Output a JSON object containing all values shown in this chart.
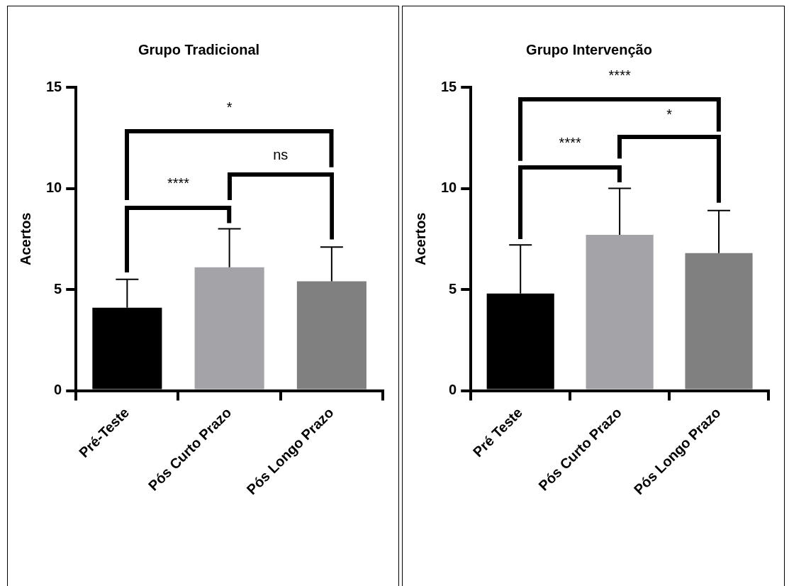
{
  "chart_data": [
    {
      "type": "bar",
      "title": "Grupo Tradicional",
      "ylabel": "Acertos",
      "categories": [
        "Pré-Teste",
        "Pós Curto Prazo",
        "Pós Longo Prazo"
      ],
      "values": [
        4.1,
        6.1,
        5.4
      ],
      "errors": [
        1.4,
        1.9,
        1.7
      ],
      "colors": [
        "#000000",
        "#a3a3a8",
        "#808080"
      ],
      "ylim": [
        0,
        15
      ],
      "yticks": [
        0,
        5,
        10,
        15
      ],
      "grid": false,
      "legend": false,
      "annotations": [
        "****",
        "ns",
        "*"
      ]
    },
    {
      "type": "bar",
      "title": "Grupo Intervenção",
      "ylabel": "Acertos",
      "categories": [
        "Pré Teste",
        "Pós Curto Prazo",
        "Pós Longo Prazo"
      ],
      "values": [
        4.8,
        7.7,
        6.8
      ],
      "errors": [
        2.4,
        2.3,
        2.1
      ],
      "colors": [
        "#000000",
        "#a3a3a8",
        "#808080"
      ],
      "ylim": [
        0,
        15
      ],
      "yticks": [
        0,
        5,
        10,
        15
      ],
      "grid": false,
      "legend": false,
      "annotations": [
        "****",
        "*",
        "****"
      ]
    }
  ]
}
